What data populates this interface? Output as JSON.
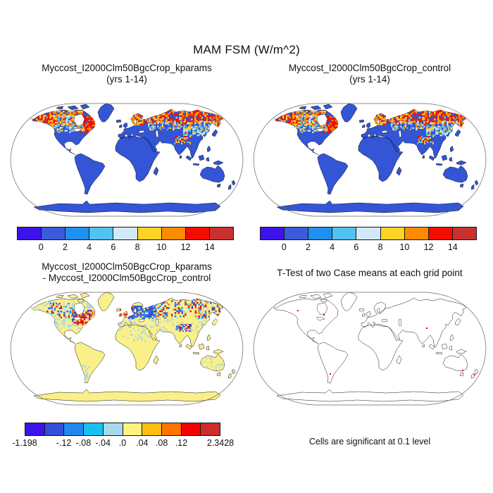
{
  "figure_title": "MAM FSM (W/m^2)",
  "panels": {
    "top_left": {
      "title_line1": "Myccost_I2000Clm50BgcCrop_kparams",
      "title_line2": "(yrs 1-14)"
    },
    "top_right": {
      "title_line1": "Myccost_I2000Clm50BgcCrop_control",
      "title_line2": "(yrs 1-14)"
    },
    "bottom_left": {
      "title_line1": "Myccost_I2000Clm50BgcCrop_kparams",
      "title_line2": "- Myccost_I2000Clm50BgcCrop_control"
    },
    "bottom_right": {
      "title": "T-Test of two Case means at each grid point",
      "caption": "Cells are significant at 0.1 level"
    }
  },
  "colorbars": {
    "value": {
      "tick_labels": [
        "0",
        "2",
        "4",
        "6",
        "8",
        "10",
        "12",
        "14"
      ],
      "colors": [
        "#3D13EB",
        "#3A5BDB",
        "#1E90F0",
        "#52C3F0",
        "#D2E9F8",
        "#FFD226",
        "#FF8C00",
        "#F30C00",
        "#C93030"
      ]
    },
    "diff": {
      "tick_labels": [
        "-1.198",
        "-.12",
        "-.08",
        "-.04",
        ".0",
        ".04",
        ".08",
        ".12",
        "2.3428"
      ],
      "colors": [
        "#3D13EB",
        "#3350D8",
        "#2288F0",
        "#18C0F0",
        "#A8D8EC",
        "#FFF380",
        "#FFBE14",
        "#FF7300",
        "#F50000",
        "#D02C2C"
      ]
    }
  },
  "map_styles": {
    "ocean": "#FFFFFF",
    "frame_outline": "#666666",
    "coast": "#000000",
    "land_value": "#3355D6",
    "land_diff": "#FAF08A",
    "land_ttest": "#FFFFFF",
    "significant": "#F50000"
  },
  "chart_data": [
    {
      "type": "heatmap",
      "subtype": "world-map",
      "title": "Myccost_I2000Clm50BgcCrop_kparams (yrs 1-14)",
      "variable": "MAM FSM (W/m^2)",
      "levels": [
        0,
        2,
        4,
        6,
        8,
        10,
        12,
        14
      ],
      "legend_position": "below",
      "pattern": "most land 0-2 W/m^2 (blue); 8-14 W/m^2 (yellow-orange-red) across boreal North America, Labrador/Quebec, Scandinavia, Siberia and NE Siberia, with 4-8 (cyan/pale) transition band and small high values on the Tibetan Plateau; Antarctica 0-2"
    },
    {
      "type": "heatmap",
      "subtype": "world-map",
      "title": "Myccost_I2000Clm50BgcCrop_control (yrs 1-14)",
      "variable": "MAM FSM (W/m^2)",
      "levels": [
        0,
        2,
        4,
        6,
        8,
        10,
        12,
        14
      ],
      "legend_position": "below",
      "pattern": "nearly identical to the kparams panel"
    },
    {
      "type": "heatmap",
      "subtype": "world-map",
      "title": "Myccost_I2000Clm50BgcCrop_kparams - Myccost_I2000Clm50BgcCrop_control",
      "variable": "MAM FSM difference (W/m^2)",
      "min": -1.198,
      "max": 2.3428,
      "levels": [
        -0.12,
        -0.08,
        -0.04,
        0,
        0.04,
        0.08,
        0.12
      ],
      "legend_position": "below",
      "pattern": "mostly near zero (pale yellow); speckled positive/negative differences over northern North America with red cluster near Great Lakes/Quebec; strong negative (blue) patch over eastern Europe/western Russia and near the Tibetan Plateau; mixed speckle along the Siberian band; light negative speckle over southern South America and Australia"
    },
    {
      "type": "map",
      "subtype": "world-map",
      "title": "T-Test of two Case means at each grid point",
      "note": "Cells are significant at 0.1 level",
      "pattern": "plain coastline outline map; only a few scattered significant (red) grid cells"
    }
  ]
}
